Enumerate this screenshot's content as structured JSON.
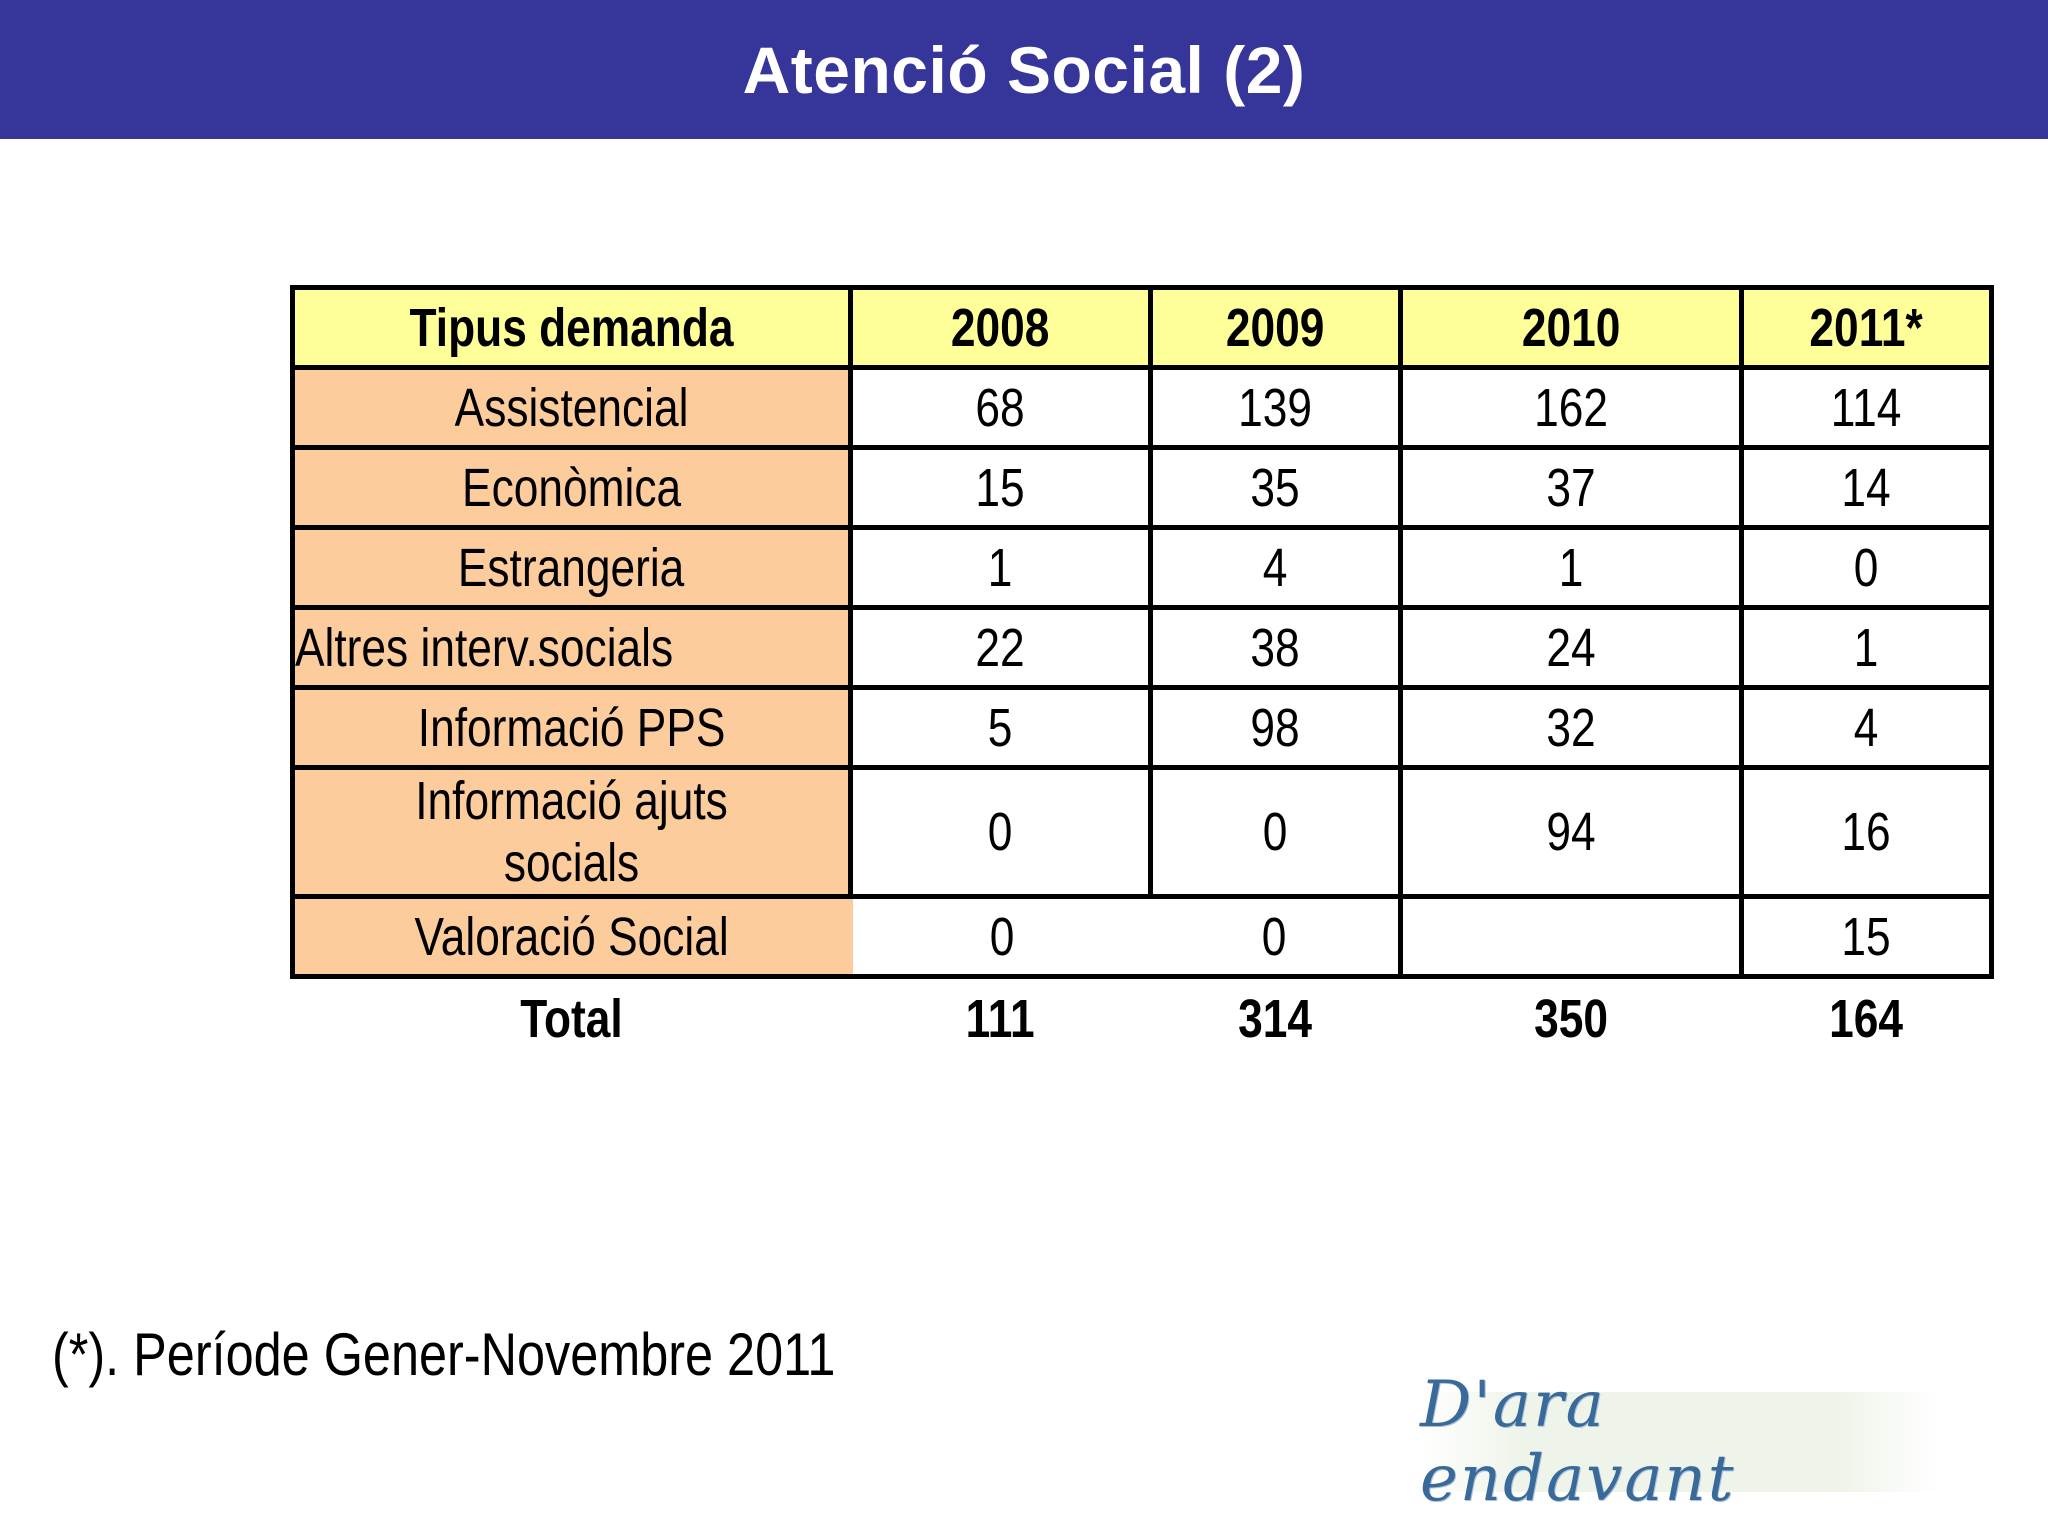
{
  "header": {
    "title": "Atenció Social (2)",
    "background_color": "#35359a"
  },
  "table": {
    "columns": [
      "Tipus demanda",
      "2008",
      "2009",
      "2010",
      "2011*"
    ],
    "rows": [
      {
        "label": "Assistencial",
        "values": [
          "68",
          "139",
          "162",
          "114"
        ]
      },
      {
        "label": "Econòmica",
        "values": [
          "15",
          "35",
          "37",
          "14"
        ]
      },
      {
        "label": "Estrangeria",
        "values": [
          "1",
          "4",
          "1",
          "0"
        ]
      },
      {
        "label": "Altres interv.socials",
        "values": [
          "22",
          "38",
          "24",
          "1"
        ]
      },
      {
        "label": "Informació PPS",
        "values": [
          "5",
          "98",
          "32",
          "4"
        ]
      },
      {
        "label": "Informació ajuts socials",
        "values": [
          "0",
          "0",
          "94",
          "16"
        ]
      },
      {
        "label": "Valoració Social",
        "values": [
          "0",
          "0",
          "",
          "15"
        ]
      }
    ],
    "total": {
      "label": "Total",
      "values": [
        "111",
        "314",
        "350",
        "164"
      ]
    },
    "header_color": "#ffff99",
    "label_color": "#fccc9c"
  },
  "footnote": "(*). Període Gener-Novembre 2011",
  "logo": {
    "text": "D'ara endavant"
  }
}
